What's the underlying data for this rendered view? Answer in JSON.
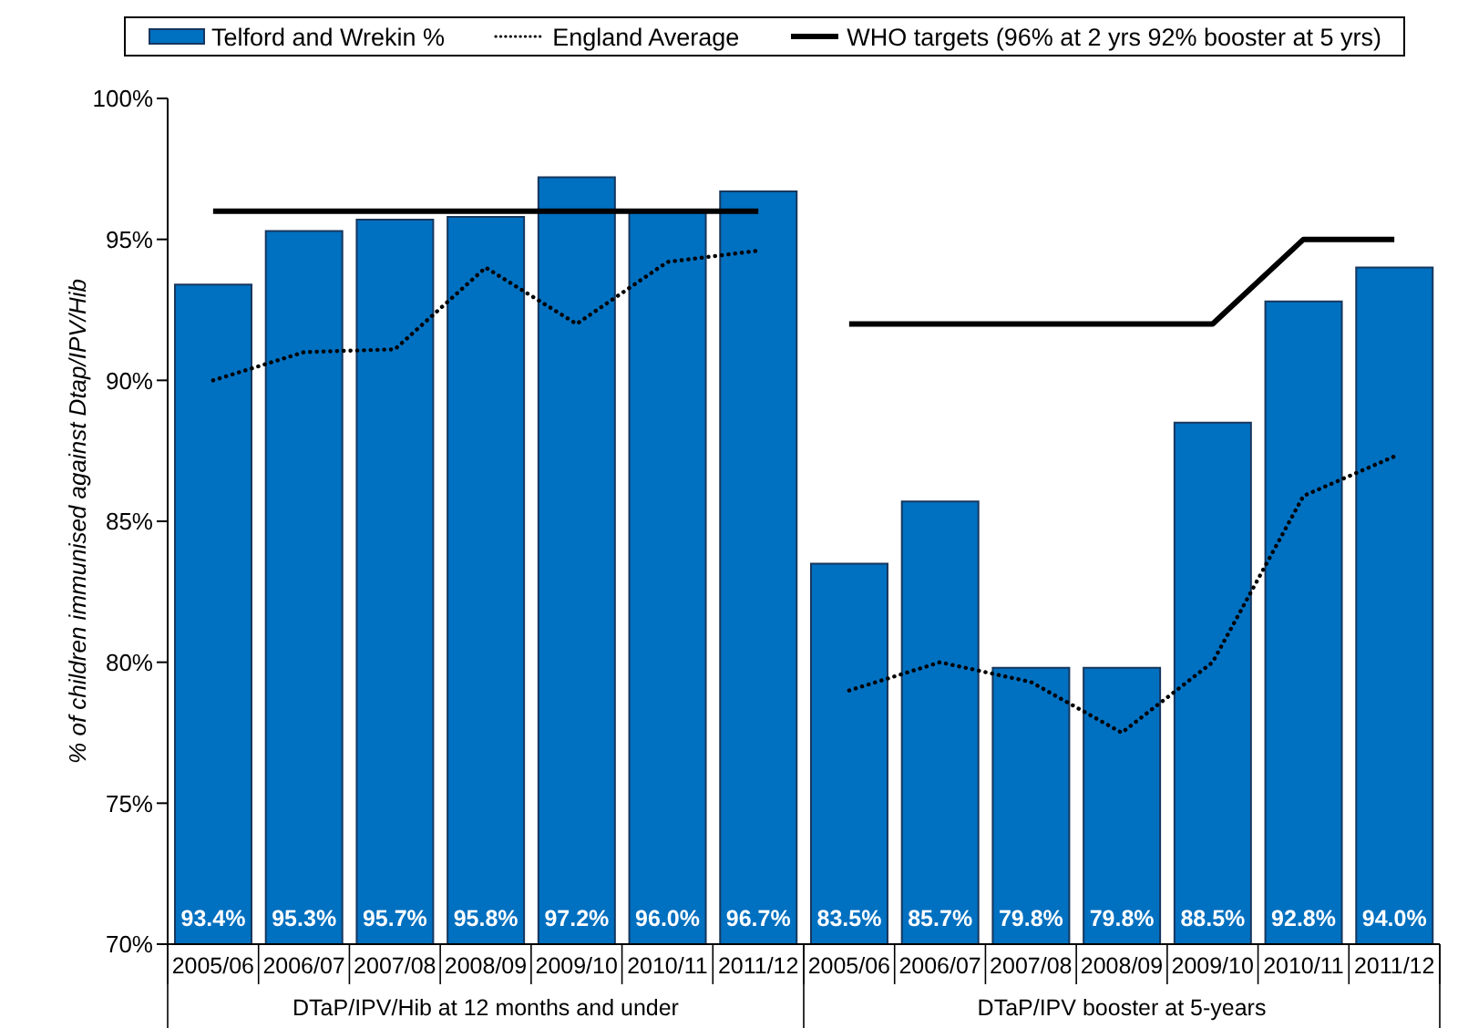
{
  "chart_data": {
    "type": "bar",
    "ylabel": "% of children immunised against Dtap/IPV/Hib",
    "categories": [
      "2005/06",
      "2006/07",
      "2007/08",
      "2008/09",
      "2009/10",
      "2010/11",
      "2011/12",
      "2005/06",
      "2006/07",
      "2007/08",
      "2008/09",
      "2009/10",
      "2010/11",
      "2011/12"
    ],
    "series": [
      {
        "name": "Telford and Wrekin %",
        "color": "#0070c0",
        "values": [
          93.4,
          95.3,
          95.7,
          95.8,
          97.2,
          96.0,
          96.7,
          83.5,
          85.7,
          79.8,
          79.8,
          88.5,
          92.8,
          94.0
        ],
        "value_labels": [
          "93.4%",
          "95.3%",
          "95.7%",
          "95.8%",
          "97.2%",
          "96.0%",
          "96.7%",
          "83.5%",
          "85.7%",
          "79.8%",
          "79.8%",
          "88.5%",
          "92.8%",
          "94.0%"
        ]
      },
      {
        "name": "England Average",
        "type": "line",
        "color": "#000000",
        "line_style": "dotted",
        "values": [
          90.0,
          91.0,
          91.1,
          94.0,
          92.0,
          94.2,
          94.6,
          null,
          null,
          null,
          null,
          null,
          null,
          null
        ]
      },
      {
        "type": "line",
        "color": "#000000",
        "line_style": "dotted",
        "values": [
          null,
          null,
          null,
          null,
          null,
          null,
          null,
          79.0,
          80.0,
          79.3,
          77.5,
          80.0,
          85.9,
          87.3
        ]
      },
      {
        "name": "WHO targets (96% at 2 yrs 92% booster at 5 yrs)",
        "type": "line",
        "color": "#000000",
        "line_style": "solid",
        "values": [
          96,
          96,
          96,
          96,
          96,
          96,
          96,
          null,
          null,
          null,
          null,
          null,
          null,
          null
        ]
      },
      {
        "type": "line",
        "color": "#000000",
        "line_style": "solid",
        "values": [
          null,
          null,
          null,
          null,
          null,
          null,
          null,
          92,
          92,
          92,
          92,
          92,
          95,
          95
        ]
      }
    ],
    "ylim": [
      70,
      100
    ],
    "yticks": [
      {
        "value": 70,
        "label": "70%"
      },
      {
        "value": 75,
        "label": "75%"
      },
      {
        "value": 80,
        "label": "80%"
      },
      {
        "value": 85,
        "label": "85%"
      },
      {
        "value": 90,
        "label": "90%"
      },
      {
        "value": 95,
        "label": "95%"
      },
      {
        "value": 100,
        "label": "100%"
      }
    ],
    "grid": false,
    "legend": "top",
    "marker": "none",
    "annotations": [
      "DTaP/IPV/Hib at 12 months and under",
      "DTaP/IPV booster at 5-years"
    ]
  }
}
